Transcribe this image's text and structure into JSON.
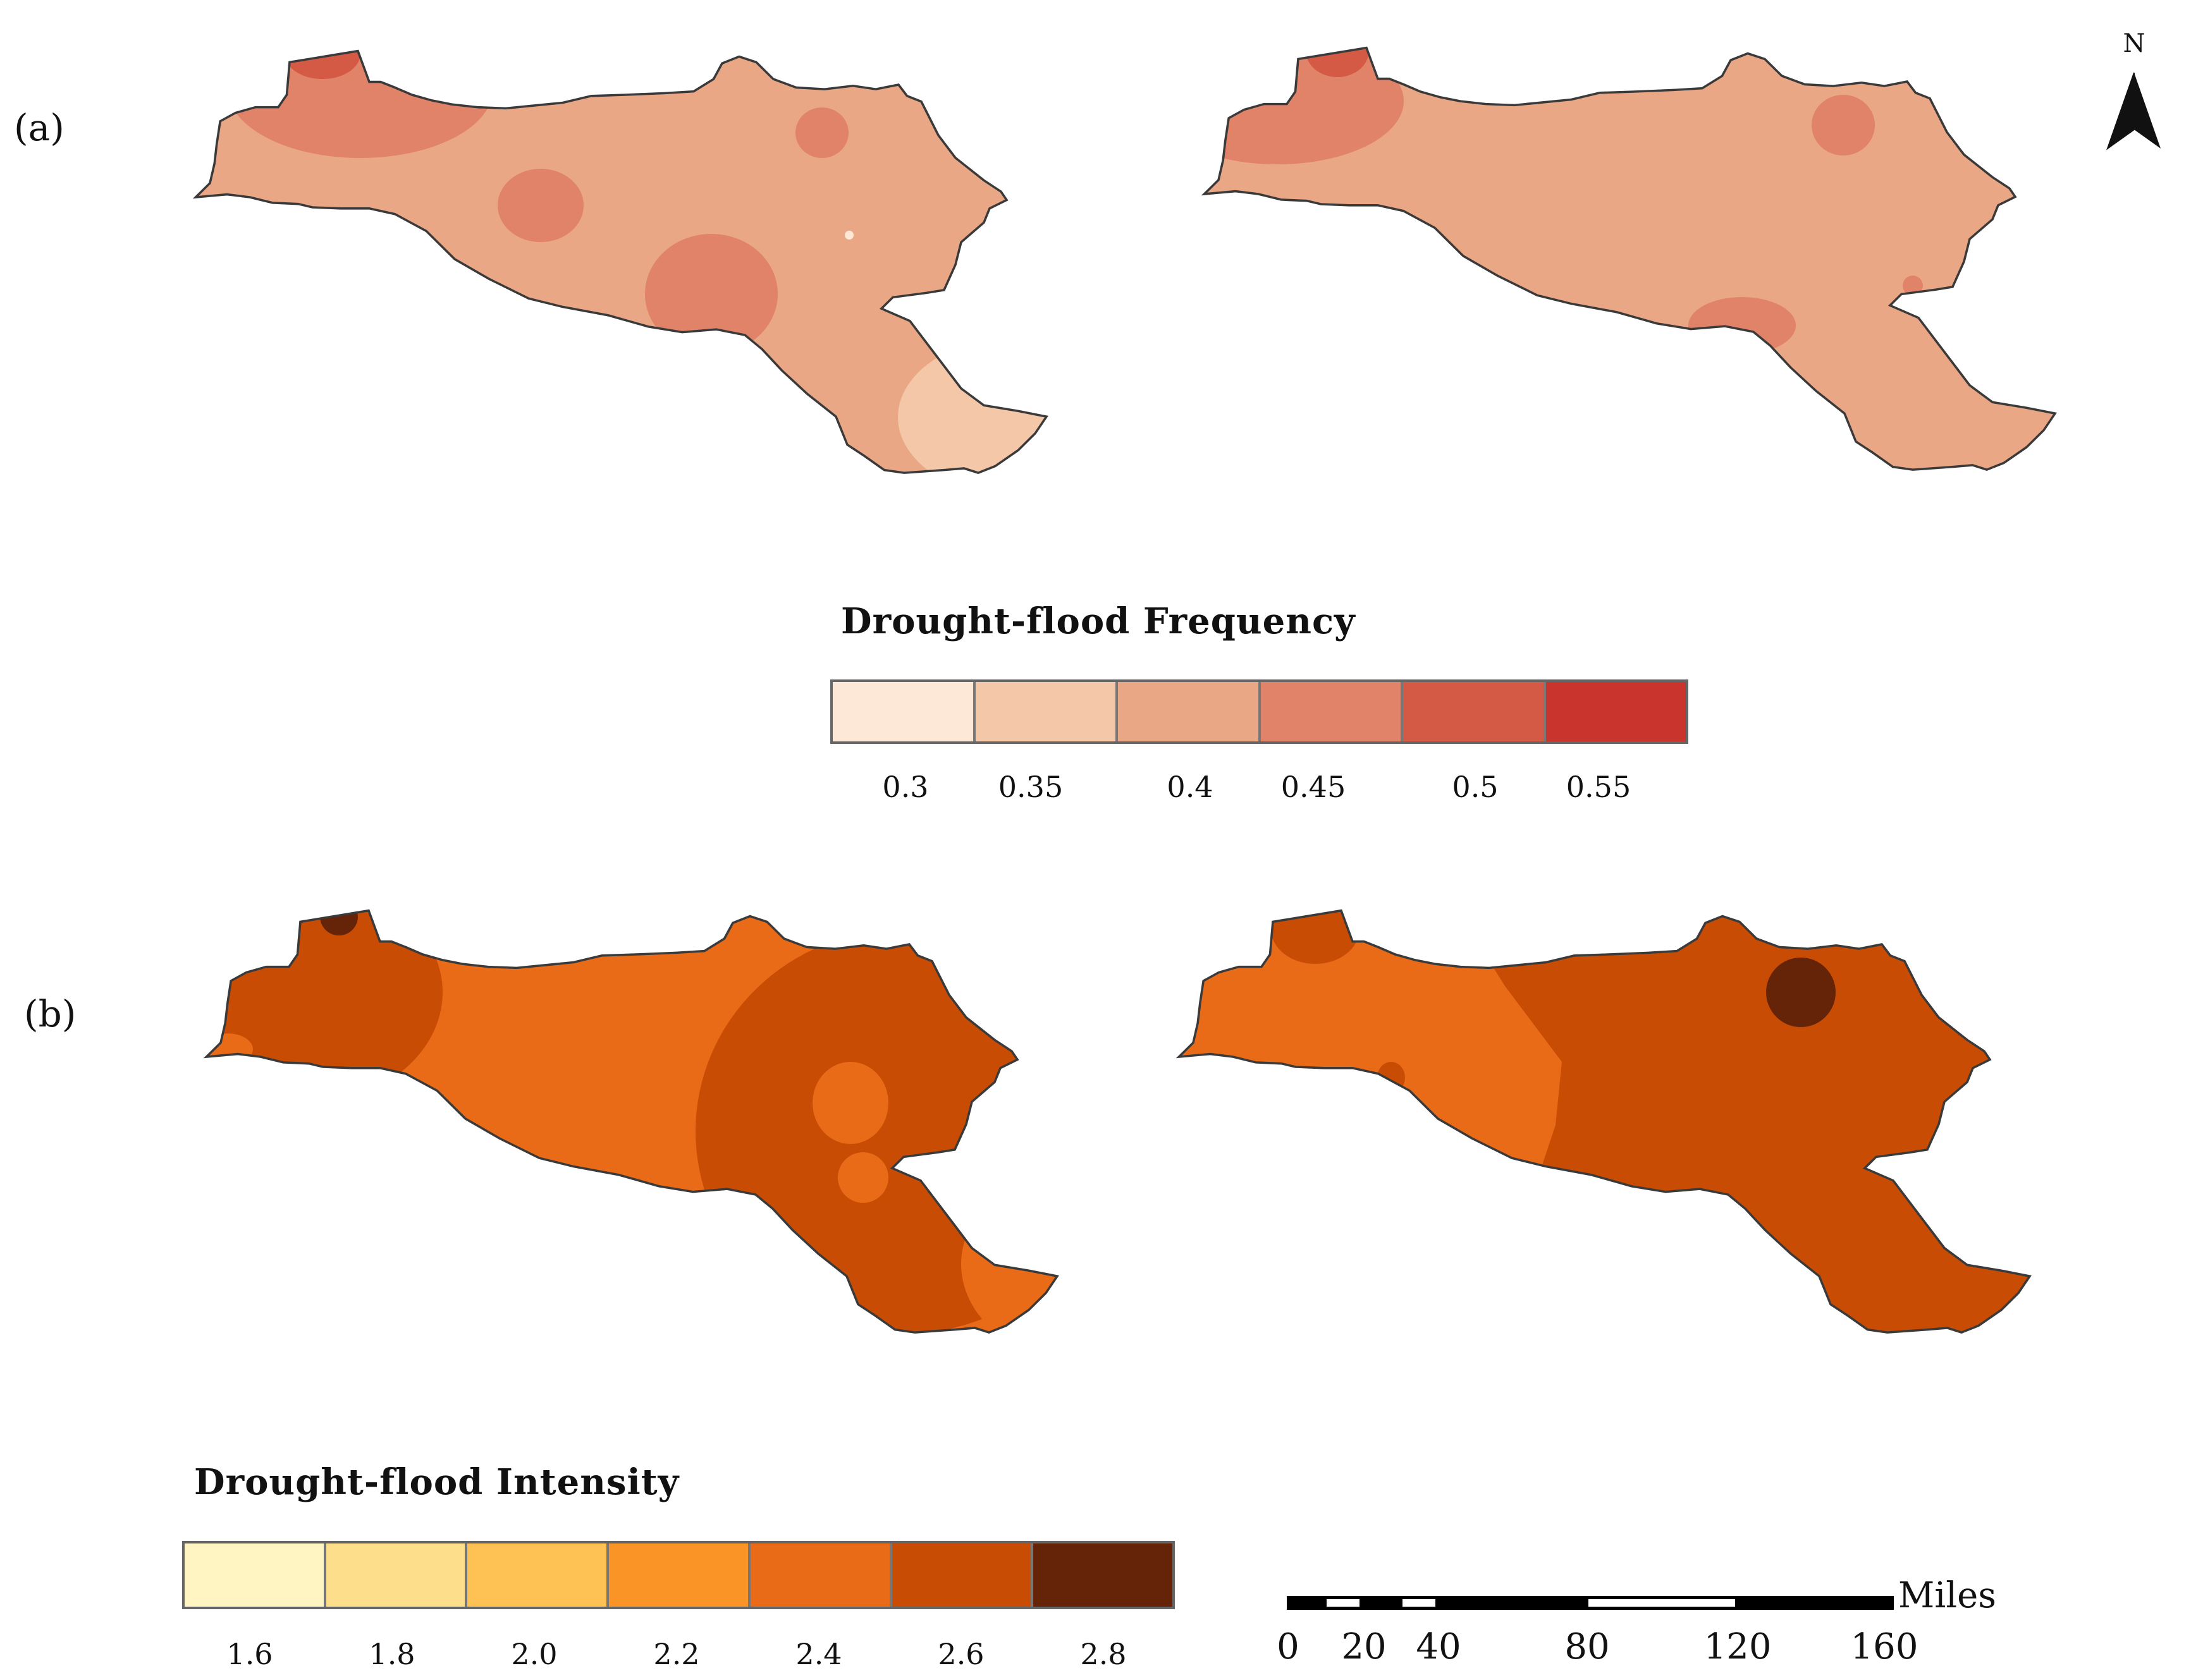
{
  "panels": {
    "a_label": "(a)",
    "b_label": "(b)"
  },
  "north_arrow": {
    "label": "N",
    "icon": "north-arrow-icon"
  },
  "frequency_legend": {
    "title": "Drought-flood Frequency",
    "colors": [
      "#fde8d7",
      "#f3c7a8",
      "#eaa786",
      "#e08368",
      "#d45a46",
      "#c9342c"
    ],
    "ticks": [
      "0.3",
      "0.35",
      "0.4",
      "0.45",
      "0.5",
      "0.55"
    ]
  },
  "intensity_legend": {
    "title": "Drought-flood Intensity",
    "colors": [
      "#fef5c2",
      "#fdde8a",
      "#fdc154",
      "#fb9426",
      "#e96b17",
      "#c94c04",
      "#652307"
    ],
    "ticks": [
      "1.6",
      "1.8",
      "2.0",
      "2.2",
      "2.4",
      "2.6",
      "2.8"
    ]
  },
  "scale_bar": {
    "unit": "Miles",
    "ticks": [
      "0",
      "20",
      "40",
      "80",
      "120",
      "160"
    ]
  },
  "colors": {
    "outline": "#3a3a3a",
    "freq_base": "#eaa786",
    "int_base": "#e96b17"
  }
}
